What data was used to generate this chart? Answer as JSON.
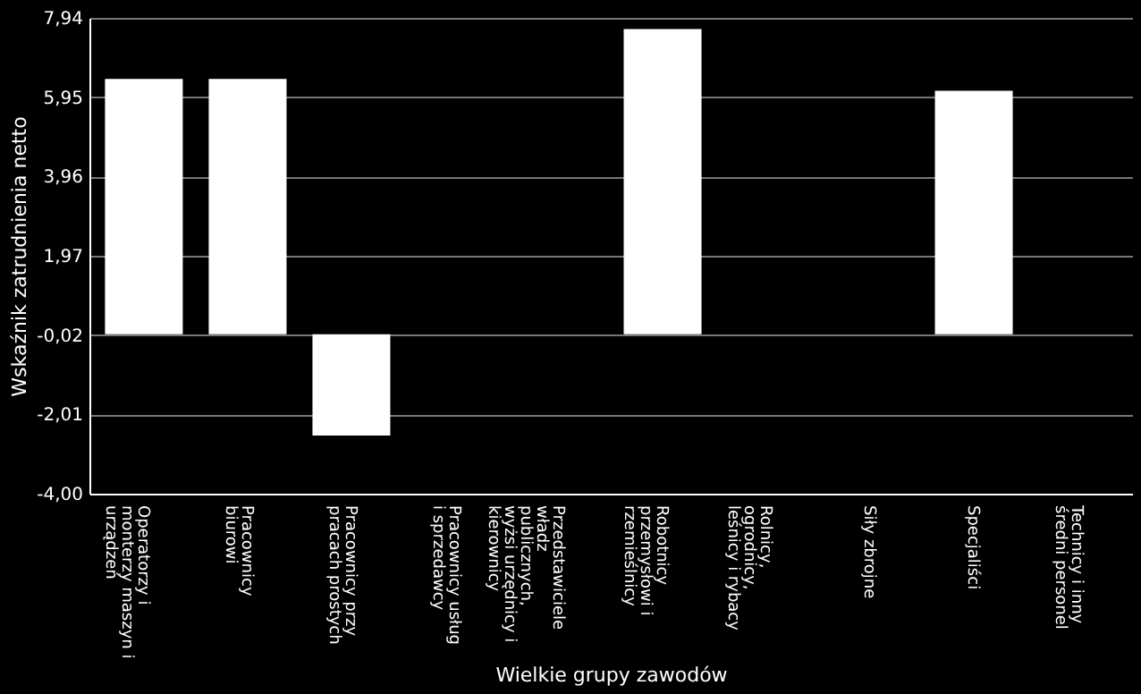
{
  "chart_data": {
    "type": "bar",
    "xlabel": "Wielkie grupy zawodów",
    "ylabel": "Wskaźnik zatrudnienia netto",
    "categories": [
      "Operatorzy i monterzy maszyn i urządzeń",
      "Pracownicy biurowi",
      "Pracownicy przy pracach prostych",
      "Pracownicy usług i sprzedawcy",
      "Przedstawiciele władz publicznych, wyżsi urzędnicy i kierownicy",
      "Robotnicy przemysłowi i rzemieślnicy",
      "Rolnicy, ogrodnicy, leśnicy i rybacy",
      "Siły zbrojne",
      "Specjaliści",
      "Technicy i inny średni personel"
    ],
    "values": [
      6.41,
      6.41,
      -2.54,
      null,
      null,
      7.66,
      null,
      null,
      6.11,
      null
    ],
    "color": "#ffffff",
    "ylim": [
      -4.0,
      7.94
    ],
    "yticks": [
      {
        "value": -4.0,
        "label": "-4,00"
      },
      {
        "value": -2.01,
        "label": "-2,01"
      },
      {
        "value": -0.02,
        "label": "-0,02"
      },
      {
        "value": 1.97,
        "label": "1,97"
      },
      {
        "value": 3.96,
        "label": "3,96"
      },
      {
        "value": 5.95,
        "label": "5,95"
      },
      {
        "value": 7.94,
        "label": "7,94"
      }
    ],
    "grid": "y"
  }
}
